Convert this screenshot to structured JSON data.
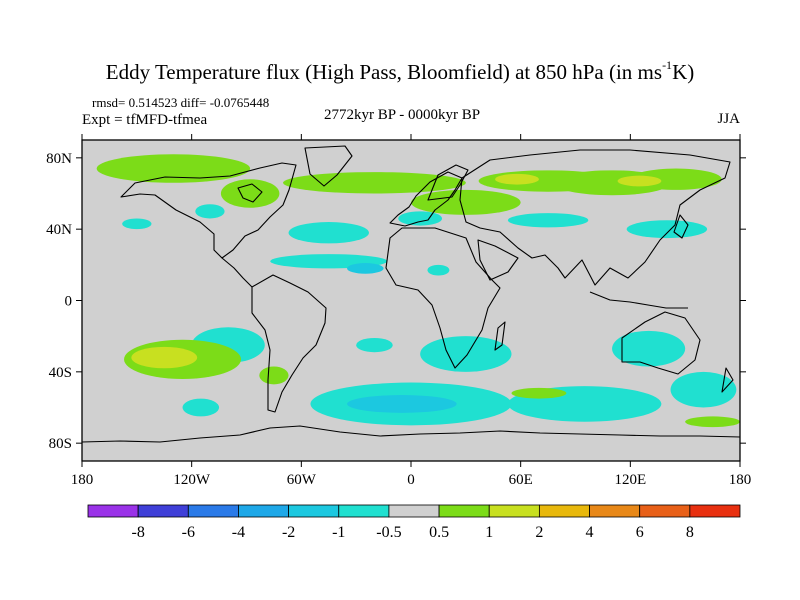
{
  "chart_data": {
    "type": "heatmap",
    "title_main": "Eddy Temperature flux (High Pass, Bloomfield) at 850 hPa (in ms",
    "title_sup": "-1",
    "title_end": "K)",
    "stats": "rmsd= 0.514523 diff= -0.0765448",
    "experiment": "Expt = tfMFD-tfmea",
    "period": "2772kyr BP - 0000kyr BP",
    "season": "JJA",
    "x_range": [
      -180,
      180
    ],
    "y_range": [
      -90,
      90
    ],
    "x_ticks": [
      {
        "value": -180,
        "label": "180"
      },
      {
        "value": -120,
        "label": "120W"
      },
      {
        "value": -60,
        "label": "60W"
      },
      {
        "value": 0,
        "label": "0"
      },
      {
        "value": 60,
        "label": "60E"
      },
      {
        "value": 120,
        "label": "120E"
      },
      {
        "value": 180,
        "label": "180"
      }
    ],
    "y_ticks": [
      {
        "value": 80,
        "label": "80N"
      },
      {
        "value": 40,
        "label": "40N"
      },
      {
        "value": 0,
        "label": "0"
      },
      {
        "value": -40,
        "label": "40S"
      },
      {
        "value": -80,
        "label": "80S"
      }
    ],
    "background_color": "#d0d0d0",
    "colorbar": {
      "levels": [
        "-8",
        "-6",
        "-4",
        "-2",
        "-1",
        "-0.5",
        "0.5",
        "1",
        "2",
        "4",
        "6",
        "8"
      ],
      "colors": [
        "#9a32e8",
        "#3f3fd8",
        "#2a7ae8",
        "#1ea8e8",
        "#1cc8e0",
        "#20e0d0",
        "#d0d0d0",
        "#7cdc18",
        "#c8e020",
        "#e8b80c",
        "#e88818",
        "#e86018",
        "#e83010"
      ]
    },
    "anomaly_regions": [
      {
        "lon": -130,
        "lat": 74,
        "rx": 42,
        "ry": 8,
        "value": 0.7
      },
      {
        "lon": -88,
        "lat": 60,
        "rx": 16,
        "ry": 8,
        "value": 0.7
      },
      {
        "lon": -20,
        "lat": 66,
        "rx": 50,
        "ry": 6,
        "value": 0.7
      },
      {
        "lon": 30,
        "lat": 55,
        "rx": 30,
        "ry": 7,
        "value": 0.7
      },
      {
        "lon": 75,
        "lat": 67,
        "rx": 38,
        "ry": 6,
        "value": 0.7
      },
      {
        "lon": 110,
        "lat": 66,
        "rx": 32,
        "ry": 7,
        "value": 0.7
      },
      {
        "lon": 145,
        "lat": 68,
        "rx": 25,
        "ry": 6,
        "value": 0.7
      },
      {
        "lon": 58,
        "lat": 68,
        "rx": 12,
        "ry": 3,
        "value": 1.5
      },
      {
        "lon": 125,
        "lat": 67,
        "rx": 12,
        "ry": 3,
        "value": 1.5
      },
      {
        "lon": -110,
        "lat": 50,
        "rx": 8,
        "ry": 4,
        "value": -0.7
      },
      {
        "lon": -45,
        "lat": 38,
        "rx": 22,
        "ry": 6,
        "value": -0.7
      },
      {
        "lon": -150,
        "lat": 43,
        "rx": 8,
        "ry": 3,
        "value": -0.7
      },
      {
        "lon": 5,
        "lat": 46,
        "rx": 12,
        "ry": 4,
        "value": -0.7
      },
      {
        "lon": 75,
        "lat": 45,
        "rx": 22,
        "ry": 4,
        "value": -0.7
      },
      {
        "lon": 140,
        "lat": 40,
        "rx": 22,
        "ry": 5,
        "value": -0.7
      },
      {
        "lon": -45,
        "lat": 22,
        "rx": 32,
        "ry": 4,
        "value": -0.7
      },
      {
        "lon": -25,
        "lat": 18,
        "rx": 10,
        "ry": 3,
        "value": -1.5
      },
      {
        "lon": 15,
        "lat": 17,
        "rx": 6,
        "ry": 3,
        "value": -0.7
      },
      {
        "lon": -100,
        "lat": -25,
        "rx": 20,
        "ry": 10,
        "value": -0.7
      },
      {
        "lon": -115,
        "lat": -60,
        "rx": 10,
        "ry": 5,
        "value": -0.7
      },
      {
        "lon": -20,
        "lat": -25,
        "rx": 10,
        "ry": 4,
        "value": -0.7
      },
      {
        "lon": 30,
        "lat": -30,
        "rx": 25,
        "ry": 10,
        "value": -0.7
      },
      {
        "lon": 0,
        "lat": -58,
        "rx": 55,
        "ry": 12,
        "value": -0.7
      },
      {
        "lon": -5,
        "lat": -58,
        "rx": 30,
        "ry": 5,
        "value": -1.5
      },
      {
        "lon": 95,
        "lat": -58,
        "rx": 42,
        "ry": 10,
        "value": -0.7
      },
      {
        "lon": 160,
        "lat": -50,
        "rx": 18,
        "ry": 10,
        "value": -0.7
      },
      {
        "lon": 165,
        "lat": -68,
        "rx": 15,
        "ry": 3,
        "value": 0.7
      },
      {
        "lon": 130,
        "lat": -27,
        "rx": 20,
        "ry": 10,
        "value": -0.7
      },
      {
        "lon": 70,
        "lat": -52,
        "rx": 15,
        "ry": 3,
        "value": 0.7
      },
      {
        "lon": -125,
        "lat": -33,
        "rx": 32,
        "ry": 11,
        "value": 0.7
      },
      {
        "lon": -135,
        "lat": -32,
        "rx": 18,
        "ry": 6,
        "value": 1.5
      },
      {
        "lon": -75,
        "lat": -42,
        "rx": 8,
        "ry": 5,
        "value": 0.7
      }
    ]
  }
}
